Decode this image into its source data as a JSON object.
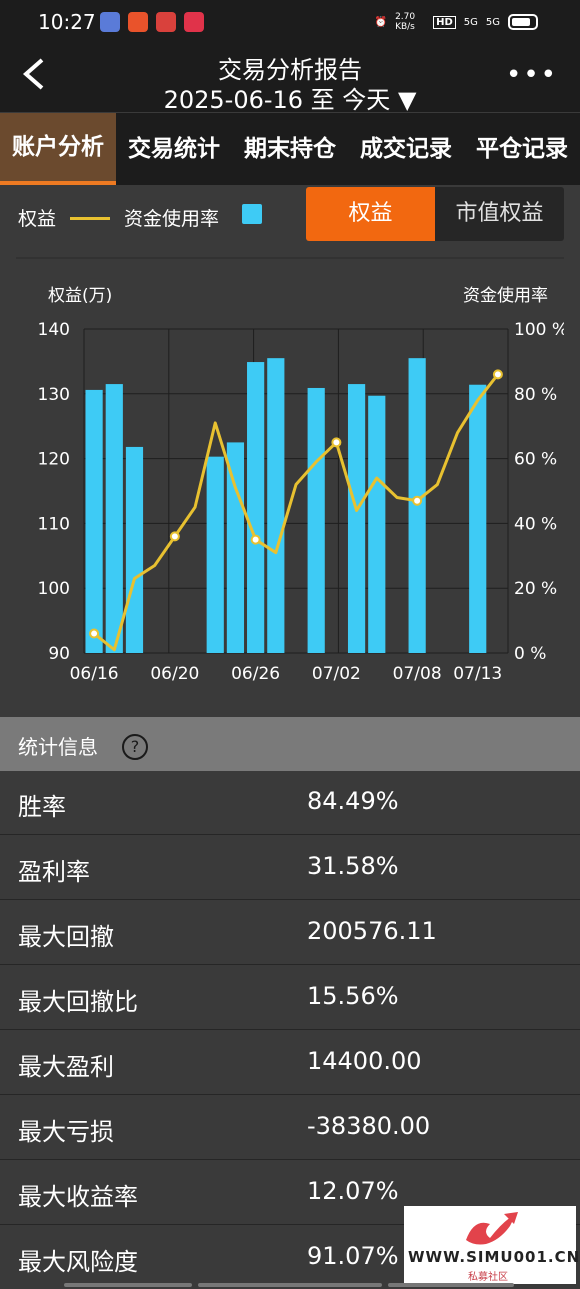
{
  "status_bar": {
    "time": "10:27",
    "network_speed": "2.70 KB/s",
    "hd_label": "HD",
    "signal_1": "5G",
    "signal_2": "5G"
  },
  "header": {
    "back_icon": "chevron-left-icon",
    "title": "交易分析报告",
    "subtitle": "2025-06-16 至 今天 ▼",
    "more_icon": "more-icon"
  },
  "tabs": [
    {
      "label": "账户分析",
      "active": true
    },
    {
      "label": "交易统计",
      "active": false
    },
    {
      "label": "期末持仓",
      "active": false
    },
    {
      "label": "成交记录",
      "active": false
    },
    {
      "label": "平仓记录",
      "active": false
    }
  ],
  "legend": {
    "equity": "权益",
    "usage": "资金使用率"
  },
  "toggle": {
    "left": "权益",
    "right": "市值权益"
  },
  "colors": {
    "bar": "#3ecbf5",
    "line": "#e8c130",
    "accent": "#f26810",
    "active_tab_bg": "#6b4a2e",
    "background": "#3a3a3a"
  },
  "chart_data": {
    "type": "bar",
    "left_axis_label": "权益(万)",
    "right_axis_label": "资金使用率",
    "y_left_ticks": [
      "140",
      "130",
      "120",
      "110",
      "100",
      "90"
    ],
    "y_right_ticks": [
      "100 %",
      "80 %",
      "60 %",
      "40 %",
      "20 %",
      "0 %"
    ],
    "ylim": [
      90,
      140
    ],
    "y2lim": [
      0,
      100
    ],
    "x_ticks": [
      "06/16",
      "06/20",
      "06/26",
      "07/02",
      "07/08",
      "07/13"
    ],
    "x_tick_slots": [
      0.5,
      4.5,
      8.5,
      12.5,
      16.5,
      19.5
    ],
    "slot_count": 21,
    "bars": [
      {
        "slot": 0,
        "value": 130.6
      },
      {
        "slot": 1,
        "value": 131.5
      },
      {
        "slot": 2,
        "value": 121.8
      },
      {
        "slot": 6,
        "value": 120.3
      },
      {
        "slot": 7,
        "value": 122.5
      },
      {
        "slot": 8,
        "value": 134.9
      },
      {
        "slot": 9,
        "value": 135.5
      },
      {
        "slot": 11,
        "value": 130.9
      },
      {
        "slot": 13,
        "value": 131.5
      },
      {
        "slot": 14,
        "value": 129.7
      },
      {
        "slot": 16,
        "value": 135.5
      },
      {
        "slot": 19,
        "value": 131.4
      }
    ],
    "line": {
      "name": "资金使用率",
      "points": [
        {
          "slot": 0.5,
          "value": 6
        },
        {
          "slot": 1.5,
          "value": 1
        },
        {
          "slot": 2.5,
          "value": 23
        },
        {
          "slot": 3.5,
          "value": 27
        },
        {
          "slot": 4.5,
          "value": 36
        },
        {
          "slot": 5.5,
          "value": 45
        },
        {
          "slot": 6.5,
          "value": 71
        },
        {
          "slot": 7.5,
          "value": 51
        },
        {
          "slot": 8.5,
          "value": 35
        },
        {
          "slot": 9.5,
          "value": 31
        },
        {
          "slot": 10.5,
          "value": 52
        },
        {
          "slot": 11.5,
          "value": 59
        },
        {
          "slot": 12.5,
          "value": 65
        },
        {
          "slot": 13.5,
          "value": 44
        },
        {
          "slot": 14.5,
          "value": 54
        },
        {
          "slot": 15.5,
          "value": 48
        },
        {
          "slot": 16.5,
          "value": 47
        },
        {
          "slot": 17.5,
          "value": 52
        },
        {
          "slot": 18.5,
          "value": 68
        },
        {
          "slot": 19.5,
          "value": 78
        },
        {
          "slot": 20.5,
          "value": 86
        }
      ],
      "highlighted_slots": [
        0.5,
        4.5,
        8.5,
        12.5,
        16.5,
        20.5
      ]
    }
  },
  "stats": {
    "title": "统计信息",
    "help_icon": "help-icon",
    "rows": [
      {
        "label": "胜率",
        "value": "84.49%"
      },
      {
        "label": "盈利率",
        "value": "31.58%"
      },
      {
        "label": "最大回撤",
        "value": "200576.11"
      },
      {
        "label": "最大回撤比",
        "value": "15.56%"
      },
      {
        "label": "最大盈利",
        "value": "14400.00"
      },
      {
        "label": "最大亏损",
        "value": "-38380.00"
      },
      {
        "label": "最大收益率",
        "value": "12.07%"
      },
      {
        "label": "最大风险度",
        "value": "91.07%"
      }
    ]
  },
  "watermark": {
    "site": "WWW.SIMU001.CN",
    "name": "私募社区"
  }
}
